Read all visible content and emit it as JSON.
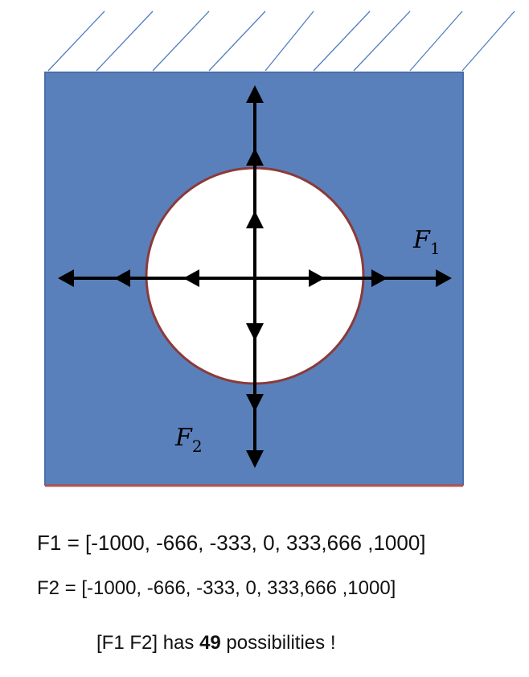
{
  "diagram": {
    "label_f1": "F",
    "label_f1_sub": "1",
    "label_f2": "F",
    "label_f2_sub": "2",
    "colors": {
      "plate": "#5a80bb",
      "plate_border": "#4a6ea8",
      "bottom_edge": "#c0504d",
      "hole_fill": "#ffffff",
      "hole_border": "#8b3a3a",
      "arrows": "#000000",
      "hatch": "#4f7fc0"
    }
  },
  "equations": {
    "f1_name": "F1",
    "f1_values": " = [-1000, -666, -333, 0, 333,666 ,1000]",
    "f2_name": "F2",
    "f2_values": " = [-1000, -666, -333, 0, 333,666 ,1000]"
  },
  "summary": {
    "prefix": "[F1 F2] has ",
    "count": "49",
    "suffix": " possibilities !"
  }
}
